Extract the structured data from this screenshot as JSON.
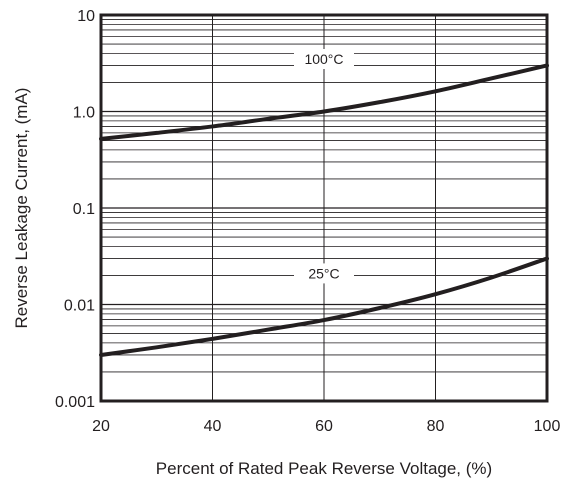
{
  "chart_data": {
    "type": "line",
    "title": "",
    "xlabel": "Percent of Rated Peak Reverse Voltage, (%)",
    "ylabel": "Reverse Leakage Current, (mA)",
    "xlim": [
      20,
      100
    ],
    "ylim": [
      0.001,
      10
    ],
    "yscale": "log",
    "grid": true,
    "x_ticks": [
      20,
      40,
      60,
      80,
      100
    ],
    "x_tick_labels": [
      "20",
      "40",
      "60",
      "80",
      "100"
    ],
    "y_ticks": [
      0.001,
      0.01,
      0.1,
      1,
      10
    ],
    "y_tick_labels": [
      "0.001",
      "0.01",
      "0.1",
      "1.0",
      "10"
    ],
    "colors": {
      "line": "#231f20",
      "grid": "#231f20",
      "text": "#231f20"
    },
    "series": [
      {
        "name": "100°C",
        "label_at": {
          "x": 60,
          "y": 3.5
        },
        "x": [
          20,
          30,
          40,
          50,
          60,
          70,
          80,
          90,
          100
        ],
        "y": [
          0.52,
          0.6,
          0.7,
          0.84,
          1.0,
          1.25,
          1.62,
          2.2,
          3.0
        ]
      },
      {
        "name": "25°C",
        "label_at": {
          "x": 60,
          "y": 0.021
        },
        "x": [
          20,
          30,
          40,
          50,
          60,
          70,
          80,
          90,
          100
        ],
        "y": [
          0.003,
          0.0036,
          0.0044,
          0.0055,
          0.0069,
          0.0092,
          0.0128,
          0.019,
          0.03
        ]
      }
    ]
  }
}
